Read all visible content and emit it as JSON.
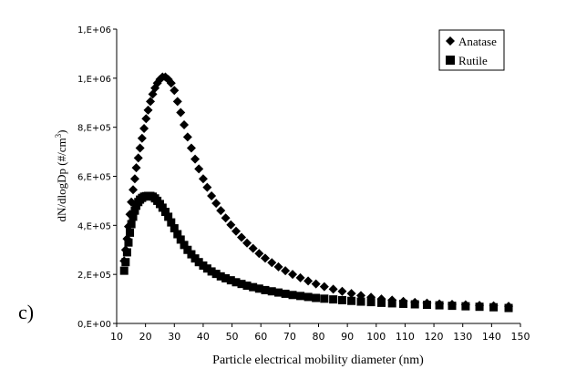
{
  "panel_label": "c)",
  "chart_data": {
    "type": "scatter",
    "title": "",
    "xlabel": "Particle electrical mobility diameter (nm)",
    "ylabel": "dN/dlogDp (#/cm³)",
    "ylabel_main": "dN/dlogDp (#/cm",
    "ylabel_sup": "3",
    "ylabel_end": ")",
    "xlim": [
      10,
      150
    ],
    "ylim": [
      0,
      1200000
    ],
    "x_ticks": [
      10,
      20,
      30,
      40,
      50,
      60,
      70,
      80,
      90,
      100,
      110,
      120,
      130,
      140,
      150
    ],
    "x_tick_labels": [
      "10",
      "20",
      "30",
      "40",
      "50",
      "60",
      "70",
      "80",
      "90",
      "100",
      "110",
      "120",
      "130",
      "140",
      "150"
    ],
    "y_ticks": [
      0,
      200000,
      400000,
      600000,
      800000,
      1000000,
      1200000
    ],
    "y_tick_labels": [
      "0,E+00",
      "2,E+05",
      "4,E+05",
      "6,E+05",
      "8,E+05",
      "1,E+06",
      "1,E+06"
    ],
    "grid": false,
    "legend_position": "top-right",
    "series": [
      {
        "name": "Anatase",
        "marker": "diamond",
        "color": "#000000",
        "x": [
          12.6,
          13.1,
          13.6,
          14.1,
          14.6,
          15.1,
          15.7,
          16.3,
          16.8,
          17.5,
          18.1,
          18.8,
          19.5,
          20.2,
          20.9,
          21.7,
          22.5,
          23.3,
          24.1,
          25.0,
          25.9,
          26.9,
          27.9,
          28.9,
          30.0,
          31.1,
          32.2,
          33.4,
          34.6,
          35.9,
          37.2,
          38.5,
          40.0,
          41.4,
          42.9,
          44.5,
          46.1,
          47.8,
          49.6,
          51.4,
          53.3,
          55.2,
          57.3,
          59.4,
          61.5,
          63.8,
          66.1,
          68.5,
          71.0,
          73.7,
          76.4,
          79.1,
          82.0,
          85.1,
          88.2,
          91.4,
          94.7,
          98.2,
          101.8,
          105.5,
          109.4,
          113.4,
          117.6,
          121.9,
          126.3,
          131.0,
          135.8,
          140.7,
          145.9
        ],
        "y": [
          255000,
          300000,
          345000,
          395000,
          445000,
          495000,
          545000,
          590000,
          635000,
          675000,
          715000,
          755000,
          795000,
          835000,
          870000,
          905000,
          935000,
          960000,
          980000,
          995000,
          1005000,
          1005000,
          995000,
          980000,
          950000,
          905000,
          860000,
          810000,
          760000,
          715000,
          670000,
          630000,
          590000,
          555000,
          520000,
          490000,
          460000,
          430000,
          402000,
          376000,
          351000,
          328000,
          306000,
          285000,
          266000,
          248000,
          231000,
          215000,
          200000,
          186000,
          173000,
          161000,
          150000,
          140000,
          131000,
          122000,
          114000,
          107000,
          100000,
          95000,
          90000,
          86000,
          83000,
          80000,
          78000,
          76000,
          74000,
          72000,
          70000
        ]
      },
      {
        "name": "Rutile",
        "marker": "square",
        "color": "#000000",
        "x": [
          12.6,
          13.1,
          13.6,
          14.1,
          14.6,
          15.1,
          15.7,
          16.3,
          16.8,
          17.5,
          18.1,
          18.8,
          19.5,
          20.2,
          20.9,
          21.7,
          22.5,
          23.3,
          24.1,
          25.0,
          25.9,
          26.9,
          27.9,
          28.9,
          30.0,
          31.1,
          32.2,
          33.4,
          34.6,
          35.9,
          37.2,
          38.5,
          40.0,
          41.4,
          42.9,
          44.5,
          46.1,
          47.8,
          49.6,
          51.4,
          53.3,
          55.2,
          57.3,
          59.4,
          61.5,
          63.8,
          66.1,
          68.5,
          71.0,
          73.7,
          76.4,
          79.1,
          82.0,
          85.1,
          88.2,
          91.4,
          94.7,
          98.2,
          101.8,
          105.5,
          109.4,
          113.4,
          117.6,
          121.9,
          126.3,
          131.0,
          135.8,
          140.7,
          145.9
        ],
        "y": [
          215000,
          250000,
          290000,
          330000,
          370000,
          405000,
          435000,
          460000,
          480000,
          495000,
          505000,
          512000,
          517000,
          519000,
          520000,
          520000,
          517000,
          510000,
          500000,
          487000,
          472000,
          455000,
          435000,
          412000,
          388000,
          364000,
          342000,
          320000,
          300000,
          282000,
          265000,
          250000,
          236000,
          224000,
          212000,
          202000,
          192000,
          184000,
          176000,
          168000,
          161000,
          154000,
          148000,
          142000,
          136000,
          131000,
          126000,
          121000,
          116000,
          112000,
          108000,
          104000,
          101000,
          98000,
          95000,
          92000,
          89000,
          87000,
          84000,
          82000,
          80000,
          78000,
          76000,
          74000,
          72000,
          70000,
          68000,
          66000,
          63000
        ]
      }
    ]
  }
}
